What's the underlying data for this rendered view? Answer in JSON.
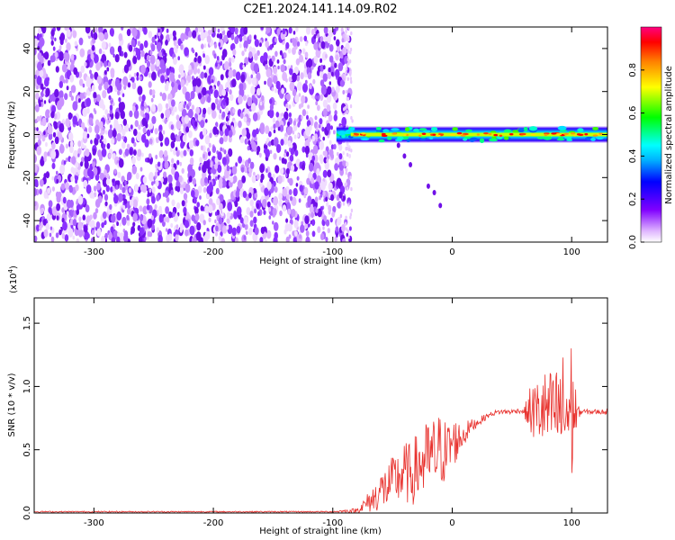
{
  "title": "C2E1.2024.141.14.09.R02",
  "colors": {
    "snr_line": "#e8312d",
    "noise_purple": "#7a1ee8",
    "axis": "#000000"
  },
  "chart_data": [
    {
      "type": "heatmap",
      "xlabel": "Height of straight line (km)",
      "ylabel": "Frequency (Hz)",
      "xlim": [
        -350,
        130
      ],
      "ylim": [
        -50,
        50
      ],
      "xticks": [
        -300,
        -200,
        -100,
        0,
        100
      ],
      "xtick_labels": [
        "-300",
        "-200",
        "-100",
        "0",
        "100"
      ],
      "yticks": [
        -40,
        -20,
        0,
        20,
        40
      ],
      "ytick_labels": [
        "-40",
        "-20",
        "0",
        "20",
        "40"
      ],
      "grid": false,
      "colorbar": {
        "label": "Normalized spectral amplitude",
        "range": [
          0,
          1
        ],
        "ticks": [
          0.0,
          0.2,
          0.4,
          0.6,
          0.8
        ],
        "tick_labels": [
          "0.0",
          "0.2",
          "0.4",
          "0.6",
          "0.8"
        ],
        "colormap": [
          "#ffffff",
          "#e0b8ff",
          "#8000ff",
          "#0000ff",
          "#00ffff",
          "#00ff00",
          "#ffff00",
          "#ff8000",
          "#ff0000",
          "#ff0080"
        ]
      },
      "regions": [
        {
          "x_from": -350,
          "x_to": -85,
          "freq_from": -50,
          "freq_to": 50,
          "amplitude": 0.15
        },
        {
          "x_from": -97,
          "x_to": 130,
          "freq_center": 0,
          "freq_halfwidth": 4,
          "amplitude": 0.45
        },
        {
          "x_from": -85,
          "x_to": 130,
          "freq_center": 0,
          "freq_halfwidth": 1.2,
          "amplitude": 0.95
        }
      ],
      "trail_points": [
        {
          "x": -45,
          "freq": -5
        },
        {
          "x": -40,
          "freq": -10
        },
        {
          "x": -35,
          "freq": -14
        },
        {
          "x": -20,
          "freq": -24
        },
        {
          "x": -15,
          "freq": -27
        },
        {
          "x": -10,
          "freq": -33
        }
      ]
    },
    {
      "type": "line",
      "xlabel": "Height of straight line (km)",
      "ylabel": "SNR (10 * v/v)",
      "y_multiplier": "(x10",
      "y_multiplier_exp": "4",
      "y_multiplier_close": ")",
      "xlim": [
        -350,
        130
      ],
      "ylim": [
        0,
        1.7
      ],
      "xticks": [
        -300,
        -200,
        -100,
        0,
        100
      ],
      "xtick_labels": [
        "-300",
        "-200",
        "-100",
        "0",
        "100"
      ],
      "yticks": [
        0.0,
        0.5,
        1.0,
        1.5
      ],
      "ytick_labels": [
        "0.0",
        "0.5",
        "1.0",
        "1.5"
      ],
      "grid": false,
      "series": [
        {
          "x": [
            -350,
            -300,
            -250,
            -200,
            -150,
            -100,
            -80,
            -75,
            -65,
            -60,
            -55,
            -50,
            -45,
            -40,
            -35,
            -30,
            -25,
            -20,
            -15,
            -10,
            -5,
            0,
            5,
            10,
            15,
            20,
            25,
            30,
            35,
            40,
            45,
            50,
            55,
            60,
            65,
            70,
            75,
            80,
            85,
            90,
            95,
            100,
            105,
            110,
            115,
            120,
            130
          ],
          "y": [
            0.01,
            0.01,
            0.01,
            0.01,
            0.01,
            0.01,
            0.02,
            0.05,
            0.12,
            0.18,
            0.2,
            0.25,
            0.28,
            0.32,
            0.3,
            0.35,
            0.4,
            0.43,
            0.45,
            0.5,
            0.48,
            0.55,
            0.58,
            0.62,
            0.68,
            0.71,
            0.74,
            0.77,
            0.79,
            0.8,
            0.8,
            0.8,
            0.81,
            0.8,
            0.8,
            0.8,
            0.81,
            0.8,
            0.8,
            0.8,
            0.8,
            0.8,
            0.8,
            0.8,
            0.8,
            0.8,
            0.8
          ],
          "noise_amplitude": [
            0.005,
            0.005,
            0.005,
            0.005,
            0.005,
            0.005,
            0.02,
            0.05,
            0.12,
            0.15,
            0.18,
            0.2,
            0.22,
            0.25,
            0.25,
            0.28,
            0.3,
            0.3,
            0.32,
            0.3,
            0.25,
            0.22,
            0.15,
            0.1,
            0.06,
            0.04,
            0.03,
            0.02,
            0.02,
            0.02,
            0.02,
            0.02,
            0.02,
            0.02,
            0.2,
            0.25,
            0.3,
            0.35,
            0.3,
            0.45,
            0.5,
            0.6,
            0.05,
            0.02,
            0.02,
            0.02,
            0.02
          ]
        }
      ]
    }
  ]
}
